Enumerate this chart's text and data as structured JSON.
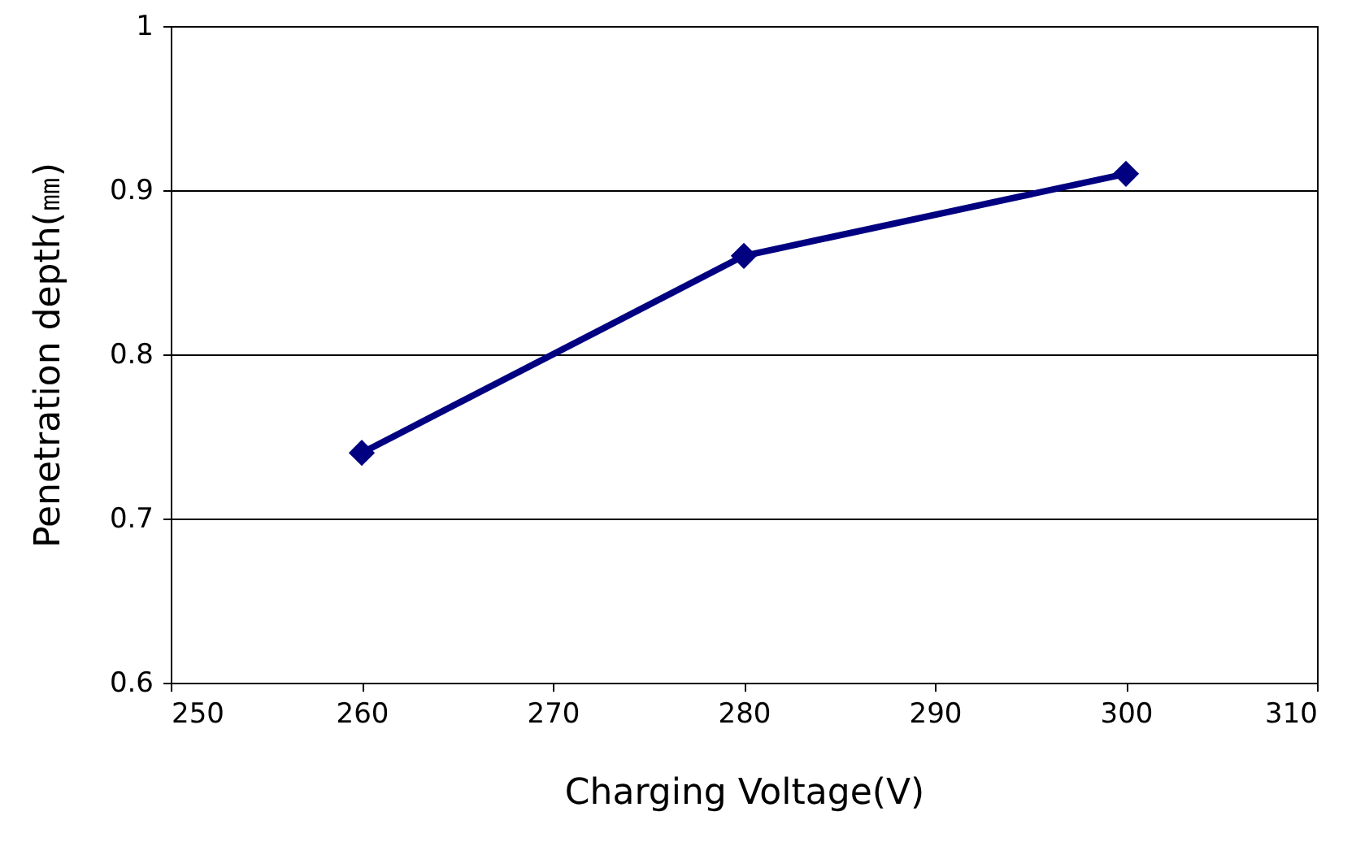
{
  "chart_data": {
    "type": "line",
    "xlabel": "Charging Voltage(V)",
    "ylabel": "Penetration depth(㎜)",
    "x": [
      260,
      280,
      300
    ],
    "series": [
      {
        "color": "#000080",
        "values": [
          0.74,
          0.86,
          0.91
        ]
      }
    ],
    "xlim": [
      250,
      310
    ],
    "xticks": [
      250,
      260,
      270,
      280,
      290,
      300,
      310
    ],
    "ylim": [
      0.6,
      1
    ],
    "yticks": [
      0.6,
      0.7,
      0.8,
      0.9,
      1
    ],
    "grid": "y",
    "marker": "diamond",
    "line_style": "solid"
  }
}
